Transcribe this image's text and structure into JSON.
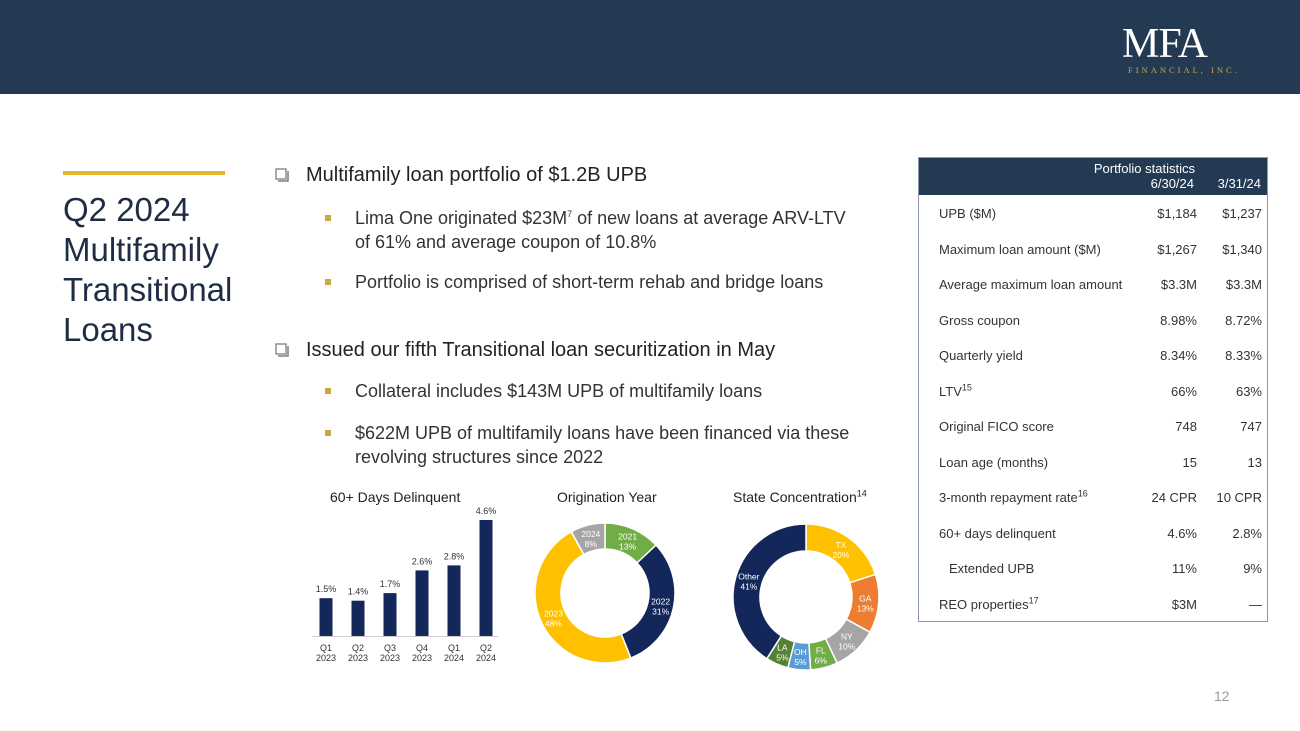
{
  "header": {
    "logo_main": "MFA",
    "logo_sub": "FINANCIAL, INC."
  },
  "title": {
    "lines": [
      "Q2 2024",
      "Multifamily",
      "Transitional",
      "Loans"
    ]
  },
  "bullets": {
    "main1": "Multifamily loan portfolio of $1.2B UPB",
    "sub1a_pre": "Lima One originated $23M",
    "sub1a_sup": "7",
    "sub1a_post": " of new loans at average ARV-LTV of 61% and average coupon of 10.8%",
    "sub1b": "Portfolio is comprised of short-term rehab and bridge loans",
    "main2": "Issued our fifth Transitional loan securitization in May",
    "sub2a": "Collateral includes $143M UPB of multifamily loans",
    "sub2b": "$622M UPB of multifamily loans have been financed via these revolving structures since 2022"
  },
  "charts": {
    "delinquent_title": "60+ Days Delinquent",
    "origination_title": "Origination Year",
    "state_title": "State Concentration",
    "state_title_sup": "14"
  },
  "chart_data": [
    {
      "type": "bar",
      "title": "60+ Days Delinquent",
      "categories": [
        [
          "Q1",
          "2023"
        ],
        [
          "Q2",
          "2023"
        ],
        [
          "Q3",
          "2023"
        ],
        [
          "Q4",
          "2023"
        ],
        [
          "Q1",
          "2024"
        ],
        [
          "Q2",
          "2024"
        ]
      ],
      "values": [
        1.5,
        1.4,
        1.7,
        2.6,
        2.8,
        4.6
      ],
      "labels": [
        "1.5%",
        "1.4%",
        "1.7%",
        "2.6%",
        "2.8%",
        "4.6%"
      ],
      "ylim": [
        0,
        4.6
      ],
      "color": "#13275a"
    },
    {
      "type": "pie",
      "title": "Origination Year",
      "slices": [
        {
          "label": "2021",
          "pct": "13%",
          "value": 13,
          "color": "#70ad47"
        },
        {
          "label": "2022",
          "pct": "31%",
          "value": 31,
          "color": "#13275a"
        },
        {
          "label": "2023",
          "pct": "48%",
          "value": 48,
          "color": "#ffc000"
        },
        {
          "label": "2024",
          "pct": "8%",
          "value": 8,
          "color": "#a5a5a5"
        }
      ]
    },
    {
      "type": "pie",
      "title": "State Concentration",
      "slices": [
        {
          "label": "TX",
          "pct": "20%",
          "value": 20,
          "color": "#ffc000"
        },
        {
          "label": "GA",
          "pct": "13%",
          "value": 13,
          "color": "#ed7d31"
        },
        {
          "label": "NY",
          "pct": "10%",
          "value": 10,
          "color": "#a5a5a5"
        },
        {
          "label": "FL",
          "pct": "6%",
          "value": 6,
          "color": "#70ad47"
        },
        {
          "label": "OH",
          "pct": "5%",
          "value": 5,
          "color": "#5b9bd5"
        },
        {
          "label": "LA",
          "pct": "5%",
          "value": 5,
          "color": "#548235"
        },
        {
          "label": "Other",
          "pct": "41%",
          "value": 41,
          "color": "#13275a"
        }
      ]
    }
  ],
  "stats": {
    "header_title": "Portfolio statistics",
    "col1": "6/30/24",
    "col2": "3/31/24",
    "rows": [
      {
        "label": "UPB ($M)",
        "v1": "$1,184",
        "v2": "$1,237"
      },
      {
        "label": "Maximum loan amount ($M)",
        "v1": "$1,267",
        "v2": "$1,340"
      },
      {
        "label": "Average maximum loan amount",
        "v1": "$3.3M",
        "v2": "$3.3M"
      },
      {
        "label": "Gross coupon",
        "v1": "8.98%",
        "v2": "8.72%"
      },
      {
        "label": "Quarterly yield",
        "v1": "8.34%",
        "v2": "8.33%"
      },
      {
        "label": "LTV",
        "sup": "15",
        "v1": "66%",
        "v2": "63%"
      },
      {
        "label": "Original FICO score",
        "v1": "748",
        "v2": "747"
      },
      {
        "label": "Loan age (months)",
        "v1": "15",
        "v2": "13"
      },
      {
        "label": "3-month repayment rate",
        "sup": "16",
        "v1": "24 CPR",
        "v2": "10 CPR"
      },
      {
        "label": "60+ days delinquent",
        "v1": "4.6%",
        "v2": "2.8%"
      },
      {
        "label": "Extended UPB",
        "v1": "11%",
        "v2": "9%"
      },
      {
        "label": "REO  properties",
        "sup": "17",
        "v1": "$3M",
        "v2": "—"
      }
    ]
  },
  "page_number": "12"
}
